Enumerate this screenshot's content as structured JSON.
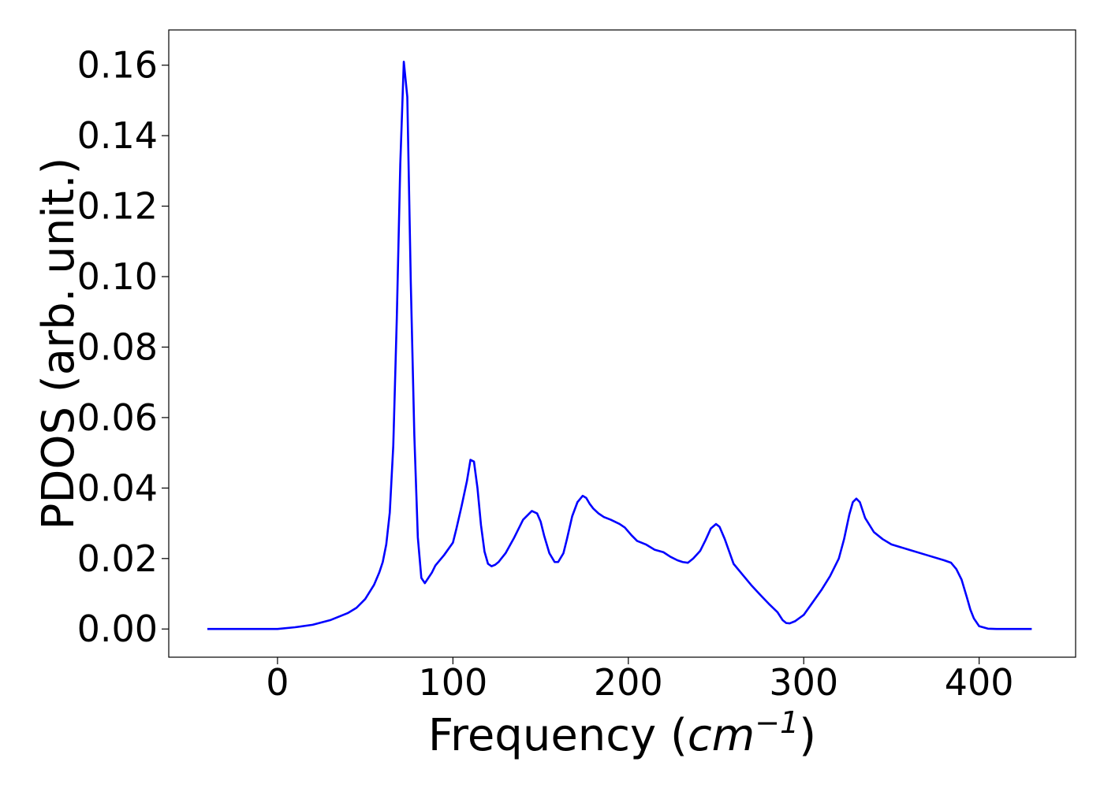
{
  "chart_data": {
    "type": "line",
    "title": "",
    "xlabel": "Frequency",
    "xlabel_unit_open": "(",
    "xlabel_unit_base": "cm",
    "xlabel_unit_exp": "−1",
    "xlabel_unit_close": ")",
    "ylabel": "PDOS (arb. unit.)",
    "xlim": [
      -62,
      455
    ],
    "ylim": [
      -0.008,
      0.17
    ],
    "xticks": [
      0,
      100,
      200,
      300,
      400
    ],
    "xtick_labels": [
      "0",
      "100",
      "200",
      "300",
      "400"
    ],
    "yticks": [
      0.0,
      0.02,
      0.04,
      0.06,
      0.08,
      0.1,
      0.12,
      0.14,
      0.16
    ],
    "ytick_labels": [
      "0.00",
      "0.02",
      "0.04",
      "0.06",
      "0.08",
      "0.10",
      "0.12",
      "0.14",
      "0.16"
    ],
    "grid": false,
    "legend": "none",
    "series": [
      {
        "color": "#0000ff",
        "x": [
          -40,
          -20,
          0,
          10,
          20,
          30,
          40,
          45,
          50,
          55,
          58,
          60,
          62,
          64,
          66,
          68,
          70,
          72,
          74,
          76,
          78,
          80,
          82,
          84,
          86,
          88,
          90,
          95,
          100,
          102,
          105,
          108,
          110,
          112,
          114,
          116,
          118,
          120,
          122,
          124,
          126,
          130,
          135,
          140,
          145,
          148,
          150,
          152,
          155,
          158,
          160,
          163,
          165,
          168,
          171,
          174,
          176,
          178,
          180,
          183,
          186,
          190,
          195,
          198,
          202,
          205,
          210,
          215,
          220,
          224,
          228,
          231,
          234,
          237,
          241,
          244,
          247,
          250,
          252,
          255,
          260,
          265,
          270,
          275,
          280,
          285,
          288,
          290,
          292,
          295,
          300,
          305,
          310,
          315,
          320,
          323,
          326,
          328,
          330,
          332,
          335,
          340,
          345,
          350,
          360,
          370,
          380,
          384,
          387,
          390,
          393,
          395,
          397,
          400,
          405,
          410,
          420,
          430
        ],
        "y": [
          0,
          0,
          0,
          0.0005,
          0.0012,
          0.0025,
          0.0045,
          0.006,
          0.0085,
          0.0125,
          0.016,
          0.019,
          0.024,
          0.033,
          0.052,
          0.088,
          0.132,
          0.161,
          0.151,
          0.098,
          0.055,
          0.026,
          0.0145,
          0.013,
          0.0145,
          0.016,
          0.018,
          0.021,
          0.0245,
          0.0285,
          0.035,
          0.042,
          0.048,
          0.0475,
          0.04,
          0.0295,
          0.022,
          0.0185,
          0.0178,
          0.0182,
          0.019,
          0.0215,
          0.026,
          0.031,
          0.0335,
          0.0328,
          0.0305,
          0.0265,
          0.0215,
          0.019,
          0.019,
          0.0215,
          0.0255,
          0.032,
          0.036,
          0.0378,
          0.0372,
          0.0355,
          0.0342,
          0.0328,
          0.0318,
          0.031,
          0.0298,
          0.0288,
          0.0265,
          0.025,
          0.024,
          0.0225,
          0.0218,
          0.0205,
          0.0195,
          0.019,
          0.0188,
          0.02,
          0.0222,
          0.0252,
          0.0285,
          0.0298,
          0.029,
          0.0255,
          0.0185,
          0.0155,
          0.0125,
          0.0098,
          0.0072,
          0.0048,
          0.0025,
          0.0017,
          0.0016,
          0.0022,
          0.004,
          0.0075,
          0.011,
          0.015,
          0.02,
          0.0255,
          0.0325,
          0.036,
          0.037,
          0.036,
          0.0315,
          0.0275,
          0.0255,
          0.024,
          0.0225,
          0.021,
          0.0195,
          0.0188,
          0.017,
          0.014,
          0.009,
          0.0055,
          0.003,
          0.0008,
          0.0001,
          0,
          0,
          0
        ]
      }
    ]
  }
}
